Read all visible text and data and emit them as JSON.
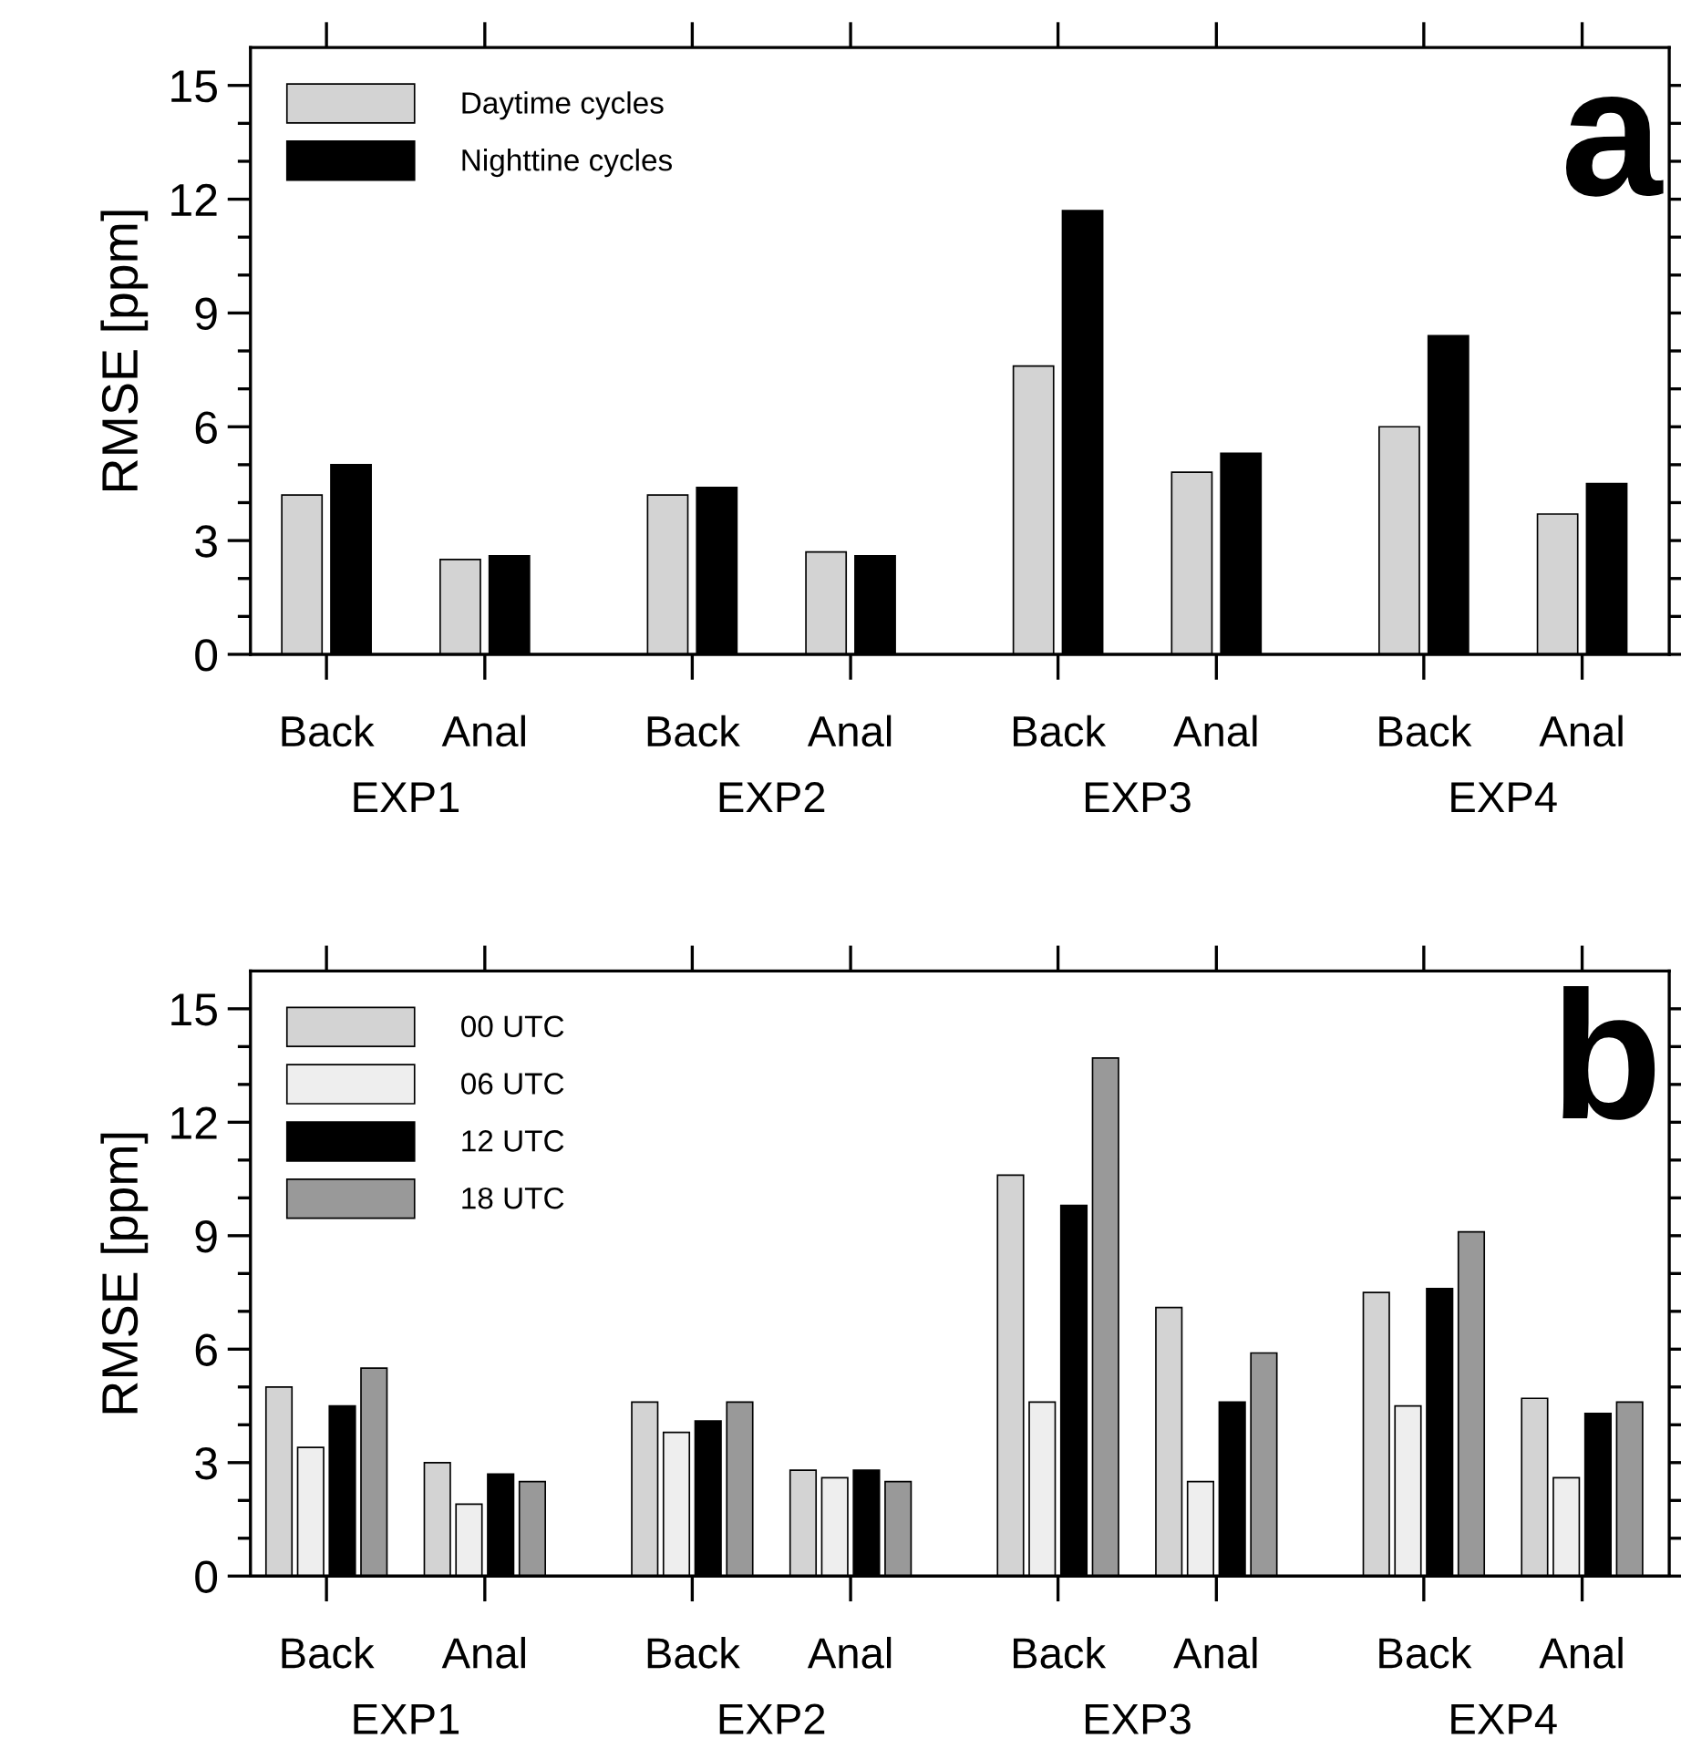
{
  "chart_data": [
    {
      "type": "bar",
      "title": "a",
      "ylabel": "RMSE [ppm]",
      "categories": [
        "Back",
        "Anal",
        "Back",
        "Anal",
        "Back",
        "Anal",
        "Back",
        "Anal"
      ],
      "annotations": [
        "EXP1",
        "EXP2",
        "EXP3",
        "EXP4"
      ],
      "series": [
        {
          "name": "Daytime cycles",
          "color": "#d3d3d3",
          "values": [
            4.2,
            2.5,
            4.2,
            2.7,
            7.6,
            4.8,
            6.0,
            3.7
          ]
        },
        {
          "name": "Nighttine cycles",
          "color": "#000000",
          "values": [
            5.0,
            2.6,
            4.4,
            2.6,
            11.7,
            5.3,
            8.4,
            4.5
          ]
        }
      ],
      "ylim": [
        0,
        16
      ],
      "yticks": [
        0,
        {
          "value": 1,
          "label": null
        },
        {
          "value": 2,
          "label": null
        },
        3,
        {
          "value": 4,
          "label": null
        },
        {
          "value": 5,
          "label": null
        },
        6,
        {
          "value": 7,
          "label": null
        },
        {
          "value": 8,
          "label": null
        },
        9,
        {
          "value": 10,
          "label": null
        },
        {
          "value": 11,
          "label": null
        },
        12,
        {
          "value": 13,
          "label": null
        },
        {
          "value": 14,
          "label": null
        },
        15
      ],
      "grid": false,
      "legend": "top left"
    },
    {
      "type": "bar",
      "title": "b",
      "ylabel": "RMSE [ppm]",
      "categories": [
        "Back",
        "Anal",
        "Back",
        "Anal",
        "Back",
        "Anal",
        "Back",
        "Anal"
      ],
      "annotations": [
        "EXP1",
        "EXP2",
        "EXP3",
        "EXP4"
      ],
      "series": [
        {
          "name": "00 UTC",
          "color": "#d3d3d3",
          "values": [
            5.0,
            3.0,
            4.6,
            2.8,
            10.6,
            7.1,
            7.5,
            4.7
          ]
        },
        {
          "name": "06 UTC",
          "color": "#eeeeee",
          "values": [
            3.4,
            1.9,
            3.8,
            2.6,
            4.6,
            2.5,
            4.5,
            2.6
          ]
        },
        {
          "name": "12 UTC",
          "color": "#000000",
          "values": [
            4.5,
            2.7,
            4.1,
            2.8,
            9.8,
            4.6,
            7.6,
            4.3
          ]
        },
        {
          "name": "18 UTC",
          "color": "#999999",
          "values": [
            5.5,
            2.5,
            4.6,
            2.5,
            13.7,
            5.9,
            9.1,
            4.6
          ]
        }
      ],
      "ylim": [
        0,
        16
      ],
      "yticks": [
        0,
        {
          "value": 1,
          "label": null
        },
        {
          "value": 2,
          "label": null
        },
        3,
        {
          "value": 4,
          "label": null
        },
        {
          "value": 5,
          "label": null
        },
        6,
        {
          "value": 7,
          "label": null
        },
        {
          "value": 8,
          "label": null
        },
        9,
        {
          "value": 10,
          "label": null
        },
        {
          "value": 11,
          "label": null
        },
        12,
        {
          "value": 13,
          "label": null
        },
        {
          "value": 14,
          "label": null
        },
        15
      ],
      "grid": false,
      "legend": "top left"
    }
  ]
}
